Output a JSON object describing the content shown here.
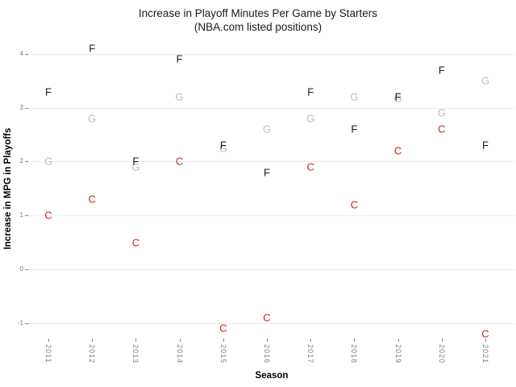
{
  "title": {
    "line1": "Increase in Playoff Minutes Per Game by Starters",
    "line2": "(NBA.com listed positions)"
  },
  "chart_data": {
    "type": "scatter",
    "marker_style": "text-letters",
    "title": "Increase in Playoff Minutes Per Game by Starters (NBA.com listed positions)",
    "xlabel": "Season",
    "ylabel": "Increase in MPG in Playoffs",
    "x": [
      2011,
      2012,
      2013,
      2014,
      2015,
      2016,
      2017,
      2018,
      2019,
      2020,
      2021
    ],
    "series": [
      {
        "name": "G",
        "label": "G",
        "color": "#bdbdbd",
        "values": [
          2.0,
          2.8,
          1.9,
          3.2,
          2.25,
          2.6,
          2.8,
          3.2,
          3.18,
          2.9,
          3.5
        ]
      },
      {
        "name": "C",
        "label": "C",
        "color": "#cc2222",
        "values": [
          1.0,
          1.3,
          0.5,
          2.0,
          -1.1,
          -0.9,
          1.9,
          1.2,
          2.2,
          2.6,
          -1.2
        ]
      },
      {
        "name": "F",
        "label": "F",
        "color": "#1a1a1a",
        "values": [
          3.3,
          4.1,
          2.0,
          3.9,
          2.3,
          1.8,
          3.3,
          2.6,
          3.2,
          3.7,
          2.3
        ]
      }
    ],
    "ylim": [
      -1.5,
      4.3
    ],
    "yticks": [
      -1,
      0,
      1,
      2,
      3,
      4
    ],
    "grid": "horizontal-only",
    "legend": "none",
    "colors": {
      "background": "#ffffff",
      "gridline": "#ebebeb",
      "tick_label": "#7f7f7f",
      "tick_mark": "#8a8a8a",
      "title_text": "#1a1a1a"
    }
  }
}
